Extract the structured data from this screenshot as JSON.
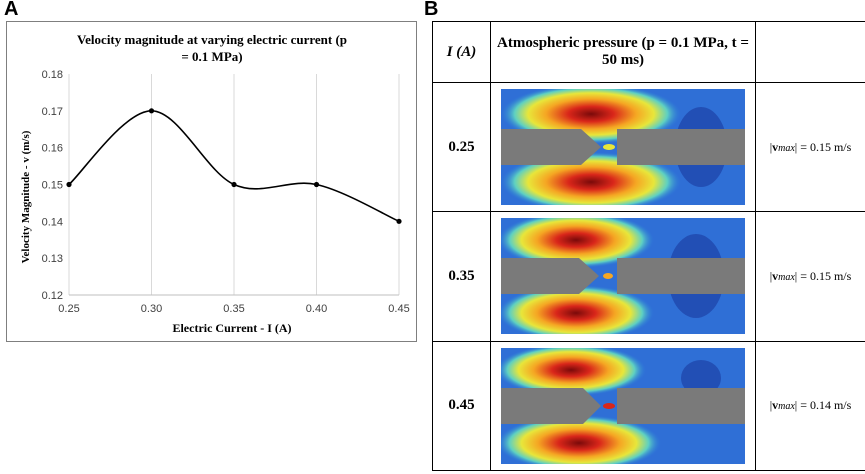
{
  "panel_labels": {
    "a": "A",
    "b": "B"
  },
  "chart_data": {
    "type": "line",
    "title_line1": "Velocity magnitude at varying electric current (p",
    "title_line2": "= 0.1 MPa)",
    "xlabel": "Electric Current - I (A)",
    "ylabel": "Velocity Magnitude - v (m/s)",
    "x": [
      0.25,
      0.3,
      0.35,
      0.4,
      0.45
    ],
    "values": [
      0.15,
      0.17,
      0.15,
      0.15,
      0.14
    ],
    "x_ticks": [
      "0.25",
      "0.30",
      "0.35",
      "0.40",
      "0.45"
    ],
    "y_ticks": [
      "0.12",
      "0.13",
      "0.14",
      "0.15",
      "0.16",
      "0.17",
      "0.18"
    ],
    "xlim": [
      0.25,
      0.45
    ],
    "ylim": [
      0.12,
      0.18
    ],
    "grid": "vertical",
    "smooth": true
  },
  "table": {
    "header_current": "I (A)",
    "header_condition": "Atmospheric pressure (p = 0.1 MPa, t = 50 ms)",
    "rows": [
      {
        "current": "0.25",
        "vmax": "= 0.15 m/s"
      },
      {
        "current": "0.35",
        "vmax": "= 0.15 m/s"
      },
      {
        "current": "0.45",
        "vmax": "= 0.14 m/s"
      }
    ]
  },
  "colors": {
    "line": "#000000",
    "grid": "#d9d9d9",
    "electrode": "#7a7a7a",
    "hot": "#cc1f10",
    "cold": "#1f3fb5"
  }
}
